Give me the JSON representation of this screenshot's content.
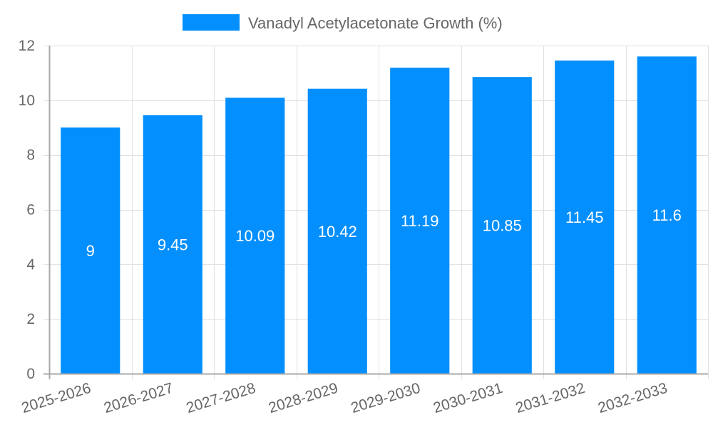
{
  "chart_data": {
    "type": "bar",
    "title": "",
    "xlabel": "",
    "ylabel": "",
    "categories": [
      "2025-2026",
      "2026-2027",
      "2027-2028",
      "2028-2029",
      "2029-2030",
      "2030-2031",
      "2031-2032",
      "2032-2033"
    ],
    "series": [
      {
        "name": "Vanadyl Acetylacetonate Growth (%)",
        "values": [
          9,
          9.45,
          10.09,
          10.42,
          11.19,
          10.85,
          11.45,
          11.6
        ],
        "color": "#038ffd"
      }
    ],
    "ylim": [
      0,
      12
    ],
    "yticks": [
      0,
      2,
      4,
      6,
      8,
      10,
      12
    ],
    "grid": true,
    "legend_position": "top",
    "data_labels": true
  },
  "legend": {
    "label": "Vanadyl Acetylacetonate Growth (%)",
    "swatch_color": "#038ffd"
  },
  "colors": {
    "bar": "#038ffd",
    "grid": "#e1e1e1",
    "axis": "#a8a8a8",
    "tick_text": "#666666",
    "label_text": "#ffffff"
  }
}
